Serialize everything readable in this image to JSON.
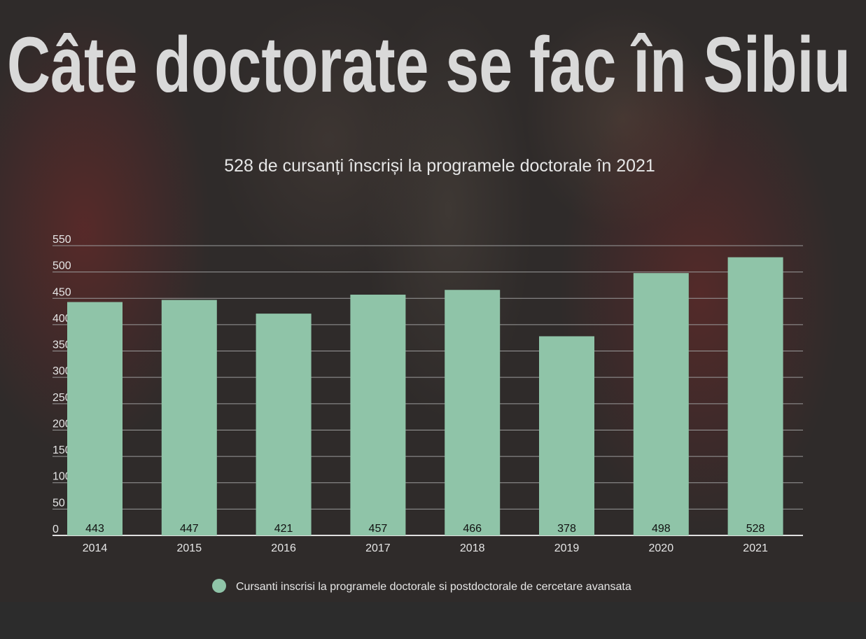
{
  "title": "Câte doctorate se fac în Sibiu",
  "chart_data": {
    "type": "bar",
    "title": "528 de cursanți înscriși la programele doctorale în 2021",
    "categories": [
      "2014",
      "2015",
      "2016",
      "2017",
      "2018",
      "2019",
      "2020",
      "2021"
    ],
    "series": [
      {
        "name": "Cursanti inscrisi la programele doctorale si postdoctorale de cercetare avansata",
        "values": [
          443,
          447,
          421,
          457,
          466,
          378,
          498,
          528
        ]
      }
    ],
    "ylim": [
      0,
      550
    ],
    "yticks": [
      0,
      50,
      100,
      150,
      200,
      250,
      300,
      350,
      400,
      450,
      500,
      550
    ],
    "xlabel": "",
    "ylabel": "",
    "grid": true,
    "legend": "bottom",
    "data_labels": true
  },
  "colors": {
    "bar": "#8fc4a8",
    "title": "#d9d9d9",
    "text": "#e6e6e6",
    "grid": "#9a9a9a"
  }
}
